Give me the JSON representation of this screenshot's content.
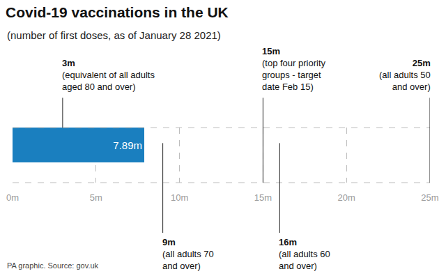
{
  "chart_data": {
    "type": "bar",
    "orientation": "horizontal",
    "title": "Covid-19 vaccinations in the UK",
    "subtitle": "(number of first doses, as of January 28 2021)",
    "categories": [
      null
    ],
    "values": [
      7.89
    ],
    "value_labels": [
      "7.89m"
    ],
    "data_labels": true,
    "color": "#1a7fbf",
    "xlim": [
      0,
      25
    ],
    "xticks": [
      {
        "value": 0,
        "label": "0m"
      },
      {
        "value": 5,
        "label": "5m"
      },
      {
        "value": 10,
        "label": "10m"
      },
      {
        "value": 15,
        "label": "15m"
      },
      {
        "value": 20,
        "label": "20m"
      },
      {
        "value": 25,
        "label": "25m"
      }
    ],
    "grid": true,
    "tick_labels": "x",
    "annotations": {
      "above": [
        {
          "value": 3,
          "label": "3m",
          "lines": [
            "(equivalent of all adults",
            "aged 80 and over)"
          ]
        },
        {
          "value": 15,
          "label": "15m",
          "lines": [
            "(top four priority",
            "groups - target",
            "date Feb 15)"
          ]
        },
        {
          "value": 25,
          "label": "25m",
          "lines": [
            "(all adults 50",
            "and over)"
          ]
        }
      ],
      "below": [
        {
          "value": 9,
          "label": "9m",
          "lines": [
            "(all adults 70",
            "and over)"
          ]
        },
        {
          "value": 16,
          "label": "16m",
          "lines": [
            "(all adults 60",
            "and over)"
          ]
        }
      ]
    },
    "source": "PA graphic. Source: gov.uk"
  }
}
